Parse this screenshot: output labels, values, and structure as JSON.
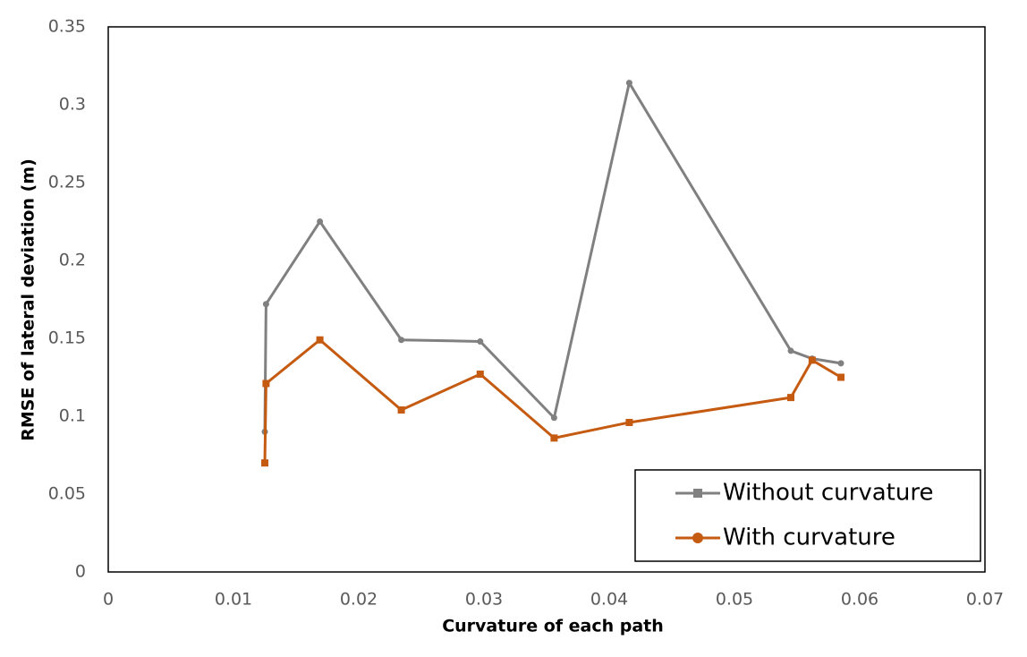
{
  "chart_data": {
    "type": "line",
    "xlabel": "Curvature of each path",
    "ylabel": "RMSE of lateral deviation (m)",
    "xlim": [
      0,
      0.07
    ],
    "xticks": [
      0,
      0.01,
      0.02,
      0.03,
      0.04,
      0.05,
      0.06,
      0.07
    ],
    "ylim": [
      0,
      0.35
    ],
    "yticks": [
      0,
      0.05,
      0.1,
      0.15,
      0.2,
      0.25,
      0.3,
      0.35
    ],
    "legend": "lower right",
    "series": [
      {
        "name": "Without curvature",
        "color": "#808080",
        "marker": "circle",
        "legend_marker": "square",
        "x": [
          0.0125,
          0.0126,
          0.0169,
          0.0234,
          0.0297,
          0.0356,
          0.0416,
          0.0545,
          0.0562,
          0.0585
        ],
        "values": [
          0.09,
          0.172,
          0.225,
          0.149,
          0.148,
          0.099,
          0.314,
          0.142,
          0.137,
          0.134
        ]
      },
      {
        "name": "With curvature",
        "color": "#c55a11",
        "marker": "square",
        "legend_marker": "circle",
        "x": [
          0.0125,
          0.0126,
          0.0169,
          0.0234,
          0.0297,
          0.0356,
          0.0416,
          0.0545,
          0.0562,
          0.0585
        ],
        "values": [
          0.07,
          0.121,
          0.149,
          0.104,
          0.127,
          0.086,
          0.096,
          0.112,
          0.136,
          0.125
        ]
      }
    ]
  }
}
